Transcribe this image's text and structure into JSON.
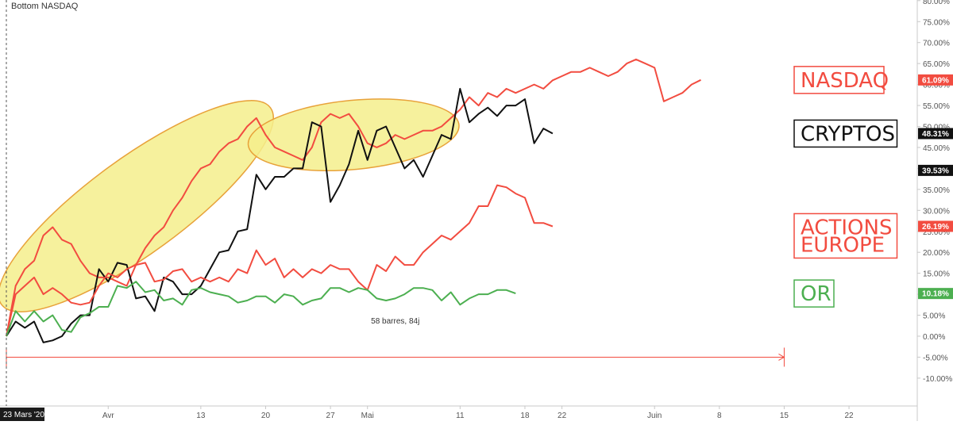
{
  "header": {
    "symbol_title": "Bottom NASDAQ"
  },
  "chart_data": {
    "type": "line",
    "title": "Bottom NASDAQ",
    "xlabel": "",
    "ylabel": "",
    "x_unit": "days since 23 Mars '20",
    "x_range": [
      0,
      96
    ],
    "ylim": [
      -14,
      80
    ],
    "y_ticks": [
      "80.00%",
      "75.00%",
      "70.00%",
      "65.00%",
      "60.00%",
      "55.00%",
      "50.00%",
      "45.00%",
      "40.00%",
      "35.00%",
      "30.00%",
      "25.00%",
      "20.00%",
      "15.00%",
      "10.00%",
      "5.00%",
      "0.00%",
      "-5.00%",
      "-10.00%"
    ],
    "y_tick_values": [
      80,
      75,
      70,
      65,
      60,
      55,
      50,
      45,
      40,
      35,
      30,
      25,
      20,
      15,
      10,
      5,
      0,
      -5,
      -10
    ],
    "x_ticks": [
      {
        "label": "23 Mars '20",
        "day": 0,
        "highlight": true
      },
      {
        "label": "Avr",
        "day": 11
      },
      {
        "label": "13",
        "day": 21
      },
      {
        "label": "20",
        "day": 28
      },
      {
        "label": "27",
        "day": 35
      },
      {
        "label": "Mai",
        "day": 39
      },
      {
        "label": "11",
        "day": 49
      },
      {
        "label": "18",
        "day": 56
      },
      {
        "label": "22",
        "day": 60
      },
      {
        "label": "Juin",
        "day": 70
      },
      {
        "label": "8",
        "day": 77
      },
      {
        "label": "15",
        "day": 84
      },
      {
        "label": "22",
        "day": 91
      }
    ],
    "grid": false,
    "series": [
      {
        "name": "NASDAQ",
        "color": "#f24c40",
        "last_value": "61.09%",
        "points": [
          [
            0,
            0
          ],
          [
            1,
            12
          ],
          [
            2,
            16
          ],
          [
            3,
            18
          ],
          [
            4,
            24
          ],
          [
            5,
            26
          ],
          [
            6,
            23
          ],
          [
            7,
            22
          ],
          [
            8,
            18
          ],
          [
            9,
            15
          ],
          [
            10,
            14
          ],
          [
            11,
            14
          ],
          [
            12,
            13
          ],
          [
            13,
            12
          ],
          [
            14,
            17
          ],
          [
            15,
            21
          ],
          [
            16,
            24
          ],
          [
            17,
            26
          ],
          [
            18,
            30
          ],
          [
            19,
            33
          ],
          [
            20,
            37
          ],
          [
            21,
            40
          ],
          [
            22,
            41
          ],
          [
            23,
            44
          ],
          [
            24,
            46
          ],
          [
            25,
            47
          ],
          [
            26,
            50
          ],
          [
            27,
            52
          ],
          [
            28,
            48
          ],
          [
            29,
            45
          ],
          [
            30,
            44
          ],
          [
            31,
            43
          ],
          [
            32,
            42
          ],
          [
            33,
            45
          ],
          [
            34,
            51
          ],
          [
            35,
            53
          ],
          [
            36,
            52
          ],
          [
            37,
            53
          ],
          [
            38,
            50
          ],
          [
            39,
            46
          ],
          [
            40,
            45
          ],
          [
            41,
            46
          ],
          [
            42,
            48
          ],
          [
            43,
            47
          ],
          [
            44,
            48
          ],
          [
            45,
            49
          ],
          [
            46,
            49
          ],
          [
            47,
            50
          ],
          [
            48,
            52
          ],
          [
            49,
            54
          ],
          [
            50,
            57
          ],
          [
            51,
            55
          ],
          [
            52,
            58
          ],
          [
            53,
            57
          ],
          [
            54,
            59
          ],
          [
            55,
            58
          ],
          [
            56,
            59
          ],
          [
            57,
            60
          ],
          [
            58,
            59
          ],
          [
            59,
            61
          ],
          [
            60,
            62
          ],
          [
            61,
            63
          ],
          [
            62,
            63
          ],
          [
            63,
            64
          ],
          [
            64,
            63
          ],
          [
            65,
            62
          ],
          [
            66,
            63
          ],
          [
            67,
            65
          ],
          [
            68,
            66
          ],
          [
            69,
            65
          ],
          [
            70,
            64
          ],
          [
            71,
            56
          ],
          [
            72,
            57
          ],
          [
            73,
            58
          ],
          [
            74,
            60
          ],
          [
            75,
            61.09
          ]
        ]
      },
      {
        "name": "CRYPTOS",
        "color": "#111111",
        "last_value": "48.31%",
        "points": [
          [
            0,
            0
          ],
          [
            1,
            3.5
          ],
          [
            2,
            2
          ],
          [
            3,
            3.5
          ],
          [
            4,
            -1.5
          ],
          [
            5,
            -1
          ],
          [
            6,
            0
          ],
          [
            7,
            3
          ],
          [
            8,
            5
          ],
          [
            9,
            5
          ],
          [
            10,
            16
          ],
          [
            11,
            13
          ],
          [
            12,
            17.5
          ],
          [
            13,
            17
          ],
          [
            14,
            9
          ],
          [
            15,
            9.5
          ],
          [
            16,
            6
          ],
          [
            17,
            14
          ],
          [
            18,
            13
          ],
          [
            19,
            10
          ],
          [
            20,
            10
          ],
          [
            21,
            12
          ],
          [
            22,
            16
          ],
          [
            23,
            20
          ],
          [
            24,
            20.5
          ],
          [
            25,
            25
          ],
          [
            26,
            25.5
          ],
          [
            27,
            38.5
          ],
          [
            28,
            35
          ],
          [
            29,
            38
          ],
          [
            30,
            38
          ],
          [
            31,
            40
          ],
          [
            32,
            40
          ],
          [
            33,
            51
          ],
          [
            34,
            50
          ],
          [
            35,
            32
          ],
          [
            36,
            36
          ],
          [
            37,
            41
          ],
          [
            38,
            49
          ],
          [
            39,
            42
          ],
          [
            40,
            49
          ],
          [
            41,
            50
          ],
          [
            42,
            45
          ],
          [
            43,
            40
          ],
          [
            44,
            42
          ],
          [
            45,
            38
          ],
          [
            46,
            43
          ],
          [
            47,
            48
          ],
          [
            48,
            47
          ],
          [
            49,
            59
          ],
          [
            50,
            51
          ],
          [
            51,
            53
          ],
          [
            52,
            54.5
          ],
          [
            53,
            52.5
          ],
          [
            54,
            55
          ],
          [
            55,
            55
          ],
          [
            56,
            56.5
          ],
          [
            57,
            46
          ],
          [
            58,
            49.5
          ],
          [
            59,
            48.31
          ]
        ]
      },
      {
        "name": "ACTIONS EUROPE",
        "color": "#f24c40",
        "last_value": "26.19%",
        "points": [
          [
            0,
            0
          ],
          [
            1,
            10
          ],
          [
            2,
            12
          ],
          [
            3,
            14
          ],
          [
            4,
            10
          ],
          [
            5,
            11.5
          ],
          [
            6,
            10
          ],
          [
            7,
            8
          ],
          [
            8,
            7.5
          ],
          [
            9,
            8
          ],
          [
            10,
            12
          ],
          [
            11,
            15
          ],
          [
            12,
            14
          ],
          [
            13,
            16
          ],
          [
            14,
            17
          ],
          [
            15,
            17.5
          ],
          [
            16,
            13
          ],
          [
            17,
            13.5
          ],
          [
            18,
            15.5
          ],
          [
            19,
            16
          ],
          [
            20,
            13
          ],
          [
            21,
            14
          ],
          [
            22,
            13
          ],
          [
            23,
            14
          ],
          [
            24,
            13
          ],
          [
            25,
            16
          ],
          [
            26,
            15
          ],
          [
            27,
            20.5
          ],
          [
            28,
            17
          ],
          [
            29,
            18.5
          ],
          [
            30,
            14
          ],
          [
            31,
            16
          ],
          [
            32,
            14
          ],
          [
            33,
            16
          ],
          [
            34,
            15
          ],
          [
            35,
            17
          ],
          [
            36,
            16
          ],
          [
            37,
            16
          ],
          [
            38,
            13
          ],
          [
            39,
            11
          ],
          [
            40,
            17
          ],
          [
            41,
            15.5
          ],
          [
            42,
            19
          ],
          [
            43,
            17
          ],
          [
            44,
            17
          ],
          [
            45,
            20
          ],
          [
            46,
            22
          ],
          [
            47,
            24
          ],
          [
            48,
            23
          ],
          [
            49,
            25
          ],
          [
            50,
            27
          ],
          [
            51,
            31
          ],
          [
            52,
            31
          ],
          [
            53,
            36
          ],
          [
            54,
            35.5
          ],
          [
            55,
            34
          ],
          [
            56,
            33
          ],
          [
            57,
            27
          ],
          [
            58,
            27
          ],
          [
            59,
            26.19
          ]
        ]
      },
      {
        "name": "OR",
        "color": "#4caf50",
        "last_value": "10.18%",
        "points": [
          [
            0,
            0
          ],
          [
            1,
            6
          ],
          [
            2,
            3.5
          ],
          [
            3,
            6
          ],
          [
            4,
            3.5
          ],
          [
            5,
            5
          ],
          [
            6,
            1.5
          ],
          [
            7,
            1
          ],
          [
            8,
            4.5
          ],
          [
            9,
            5.5
          ],
          [
            10,
            7
          ],
          [
            11,
            7
          ],
          [
            12,
            12
          ],
          [
            13,
            11.5
          ],
          [
            14,
            13
          ],
          [
            15,
            10.5
          ],
          [
            16,
            11
          ],
          [
            17,
            8.5
          ],
          [
            18,
            9
          ],
          [
            19,
            7.5
          ],
          [
            20,
            11
          ],
          [
            21,
            11.5
          ],
          [
            22,
            10.5
          ],
          [
            23,
            10
          ],
          [
            24,
            9.5
          ],
          [
            25,
            8
          ],
          [
            26,
            8.5
          ],
          [
            27,
            9.5
          ],
          [
            28,
            9.5
          ],
          [
            29,
            8
          ],
          [
            30,
            10
          ],
          [
            31,
            9.5
          ],
          [
            32,
            7.5
          ],
          [
            33,
            8.5
          ],
          [
            34,
            9
          ],
          [
            35,
            11.5
          ],
          [
            36,
            11.5
          ],
          [
            37,
            10.5
          ],
          [
            38,
            11.5
          ],
          [
            39,
            11
          ],
          [
            40,
            9
          ],
          [
            41,
            8.5
          ],
          [
            42,
            9
          ],
          [
            43,
            10
          ],
          [
            44,
            11.5
          ],
          [
            45,
            11.5
          ],
          [
            46,
            11
          ],
          [
            47,
            8.5
          ],
          [
            48,
            10.5
          ],
          [
            49,
            7.5
          ],
          [
            50,
            9
          ],
          [
            51,
            10
          ],
          [
            52,
            10
          ],
          [
            53,
            11
          ],
          [
            54,
            11
          ],
          [
            55,
            10.18
          ]
        ]
      }
    ],
    "price_badges": [
      {
        "text": "61.09%",
        "value": 61.09,
        "bg": "#f24c40",
        "color": "#ffffff"
      },
      {
        "text": "48.31%",
        "value": 48.31,
        "bg": "#111111",
        "color": "#ffffff"
      },
      {
        "text": "39.53%",
        "value": 39.53,
        "bg": "#111111",
        "color": "#ffffff"
      },
      {
        "text": "26.19%",
        "value": 26.19,
        "bg": "#f24c40",
        "color": "#ffffff"
      },
      {
        "text": "10.18%",
        "value": 10.18,
        "bg": "#4caf50",
        "color": "#ffffff"
      }
    ],
    "legend_boxes": [
      {
        "text": "NASDAQ",
        "color": "#f24c40",
        "lines": [
          "NASDAQ"
        ]
      },
      {
        "text": "CRYPTOS",
        "color": "#111111",
        "lines": [
          "CRYPTOS"
        ]
      },
      {
        "text": "ACTIONS EUROPE",
        "color": "#f24c40",
        "lines": [
          "ACTIONS",
          "EUROPE"
        ]
      },
      {
        "text": "OR",
        "color": "#4caf50",
        "lines": [
          "OR"
        ]
      }
    ],
    "annotations": {
      "ellipse_fill": "#f5ef8c",
      "ellipse_stroke": "#e8a23a",
      "highlight_ellipses": [
        {
          "name": "highlight-ellipse-april",
          "start_day": 1,
          "end_day": 27
        },
        {
          "name": "highlight-ellipse-may",
          "start_day": 28,
          "end_day": 47
        },
        {
          "name": "highlight-ellipse-june",
          "start_day": 52,
          "end_day": 78
        }
      ],
      "date_range": {
        "label": "58 barres, 84j",
        "start_day": 0,
        "end_day": 84,
        "level": -5,
        "color": "#f24c40"
      }
    },
    "colors": {
      "accent_red": "#f24c40",
      "black": "#111111",
      "green": "#4caf50",
      "axis_text": "#555555"
    }
  }
}
